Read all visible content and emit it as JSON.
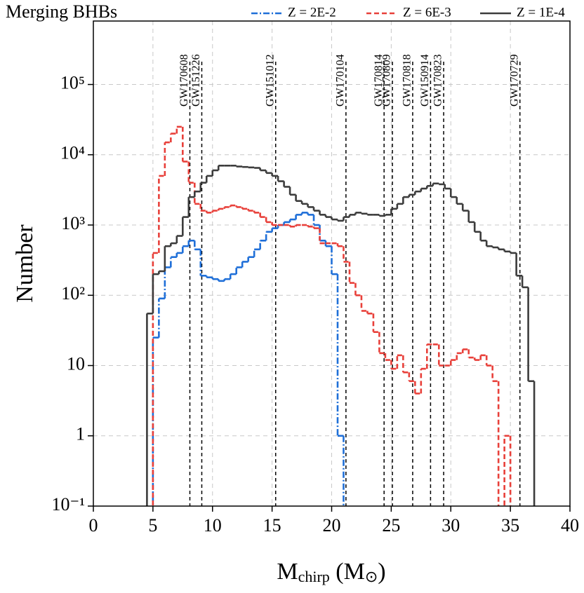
{
  "chart_data": {
    "type": "step-histogram",
    "legend_title": "Merging BHBs",
    "xlabel_parts": [
      "M",
      "chirp",
      " (M",
      "⊙",
      ")"
    ],
    "ylabel": "Number",
    "xlim": [
      0,
      40
    ],
    "xticks": [
      0,
      5,
      10,
      15,
      20,
      25,
      30,
      35,
      40
    ],
    "ylim": [
      0.1,
      800000
    ],
    "yscale": "log",
    "yticks": [
      {
        "value": 0.1,
        "label": "10⁻¹"
      },
      1,
      10,
      {
        "value": 100,
        "label": "10²"
      },
      {
        "value": 1000,
        "label": "10³"
      },
      {
        "value": 10000,
        "label": "10⁴"
      },
      {
        "value": 100000,
        "label": "10⁵"
      }
    ],
    "grid": true,
    "legend": "top",
    "bins": [
      4.0,
      4.5,
      5.0,
      5.5,
      6.0,
      6.5,
      7.0,
      7.5,
      8.0,
      8.5,
      9.0,
      9.5,
      10.0,
      10.5,
      11.0,
      11.5,
      12.0,
      12.5,
      13.0,
      13.5,
      14.0,
      14.5,
      15.0,
      15.5,
      16.0,
      16.5,
      17.0,
      17.5,
      18.0,
      18.5,
      19.0,
      19.5,
      20.0,
      20.5,
      21.0,
      21.5,
      22.0,
      22.5,
      23.0,
      23.5,
      24.0,
      24.5,
      25.0,
      25.5,
      26.0,
      26.5,
      27.0,
      27.5,
      28.0,
      28.5,
      29.0,
      29.5,
      30.0,
      30.5,
      31.0,
      31.5,
      32.0,
      32.5,
      33.0,
      33.5,
      34.0,
      34.5,
      35.0,
      35.5,
      36.0,
      36.5,
      37.0,
      37.5
    ],
    "series": [
      {
        "name": "Z = 2E-2",
        "color": "#1f6fd8",
        "dash": "9,3,2,3",
        "values": [
          0,
          0,
          25,
          90,
          250,
          350,
          400,
          500,
          600,
          450,
          190,
          180,
          170,
          160,
          170,
          200,
          250,
          300,
          350,
          450,
          600,
          800,
          900,
          1000,
          1100,
          1200,
          1400,
          1500,
          1400,
          1000,
          600,
          500,
          200,
          1,
          0,
          0,
          0,
          0,
          0,
          0,
          0,
          0,
          0,
          0,
          0,
          0,
          0,
          0,
          0,
          0,
          0,
          0,
          0,
          0,
          0,
          0,
          0,
          0,
          0,
          0,
          0,
          0,
          0,
          0,
          0,
          0,
          0
        ]
      },
      {
        "name": "Z = 6E-3",
        "color": "#e8403a",
        "dash": "7,4",
        "values": [
          0,
          0,
          400,
          5000,
          15000,
          20000,
          25000,
          8000,
          4000,
          2000,
          1600,
          1500,
          1600,
          1700,
          1800,
          1900,
          1800,
          1700,
          1600,
          1500,
          1300,
          1100,
          1000,
          1000,
          1000,
          950,
          1000,
          1000,
          950,
          900,
          550,
          550,
          550,
          500,
          300,
          150,
          100,
          60,
          55,
          30,
          15,
          12,
          9,
          14,
          8,
          6,
          4,
          9,
          20,
          20,
          10,
          10,
          12,
          15,
          17,
          13,
          12,
          14,
          10,
          6,
          0,
          1,
          0,
          0,
          0,
          0,
          0
        ]
      },
      {
        "name": "Z = 1E-4",
        "color": "#3c3c3c",
        "dash": "none",
        "values": [
          0,
          55,
          200,
          220,
          500,
          550,
          700,
          1300,
          2500,
          3000,
          4000,
          5000,
          6000,
          7000,
          7000,
          7000,
          6800,
          6700,
          6600,
          6500,
          6000,
          5500,
          5000,
          4200,
          3500,
          2700,
          2200,
          2000,
          1800,
          1600,
          1400,
          1300,
          1200,
          1150,
          1300,
          1400,
          1500,
          1450,
          1400,
          1400,
          1350,
          1400,
          1700,
          2000,
          2500,
          2700,
          3000,
          3300,
          3600,
          3900,
          3800,
          3300,
          2500,
          2000,
          1600,
          1100,
          800,
          600,
          500,
          480,
          450,
          420,
          400,
          190,
          130,
          6,
          0
        ]
      }
    ],
    "events": [
      {
        "label": "GW170608",
        "x": 8.1
      },
      {
        "label": "GW151226",
        "x": 9.1
      },
      {
        "label": "GW151012",
        "x": 15.3
      },
      {
        "label": "GW170104",
        "x": 21.2
      },
      {
        "label": "GW170814",
        "x": 24.4
      },
      {
        "label": "GW170809",
        "x": 25.1
      },
      {
        "label": "GW170818",
        "x": 26.8
      },
      {
        "label": "GW150914",
        "x": 28.3
      },
      {
        "label": "GW170823",
        "x": 29.4
      },
      {
        "label": "GW170729",
        "x": 35.8
      }
    ]
  }
}
